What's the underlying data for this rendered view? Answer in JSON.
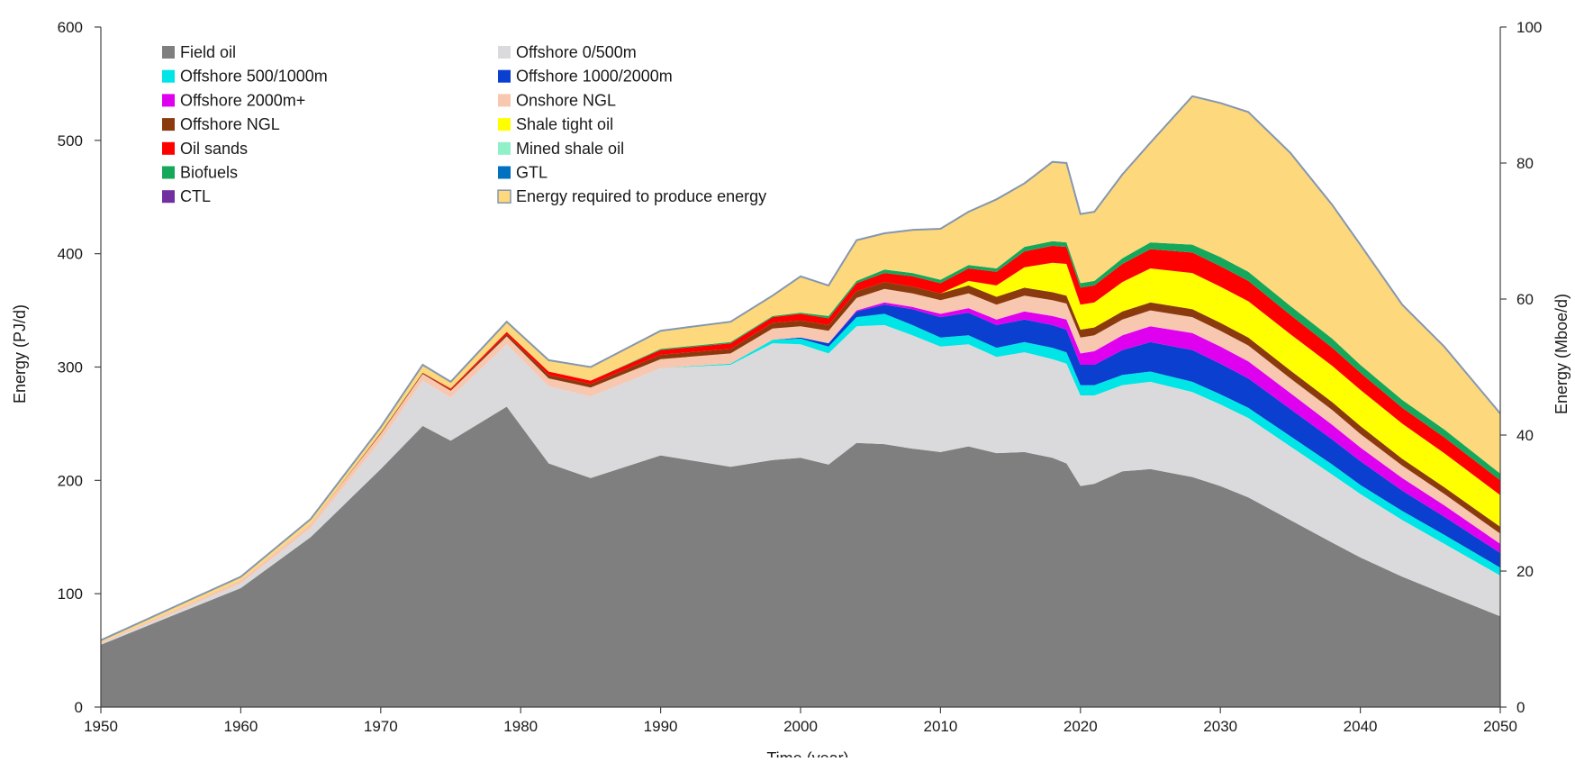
{
  "chart_data": {
    "type": "area",
    "stacked": true,
    "title": "",
    "xlabel": "Time (year)",
    "ylabel": "Energy  (PJ/d)",
    "y2label": "Energy (Mboe/d)",
    "xlim": [
      1950,
      2050
    ],
    "ylim": [
      0,
      600
    ],
    "y2lim": [
      0,
      100
    ],
    "xticks": [
      1950,
      1960,
      1970,
      1980,
      1990,
      2000,
      2010,
      2020,
      2030,
      2040,
      2050
    ],
    "yticks": [
      0,
      100,
      200,
      300,
      400,
      500,
      600
    ],
    "y2ticks": [
      0,
      20,
      40,
      60,
      80,
      100
    ],
    "grid": false,
    "legend_position": "top-left",
    "x": [
      1950,
      1955,
      1960,
      1965,
      1970,
      1973,
      1975,
      1979,
      1982,
      1985,
      1990,
      1995,
      1998,
      2000,
      2002,
      2004,
      2006,
      2008,
      2010,
      2012,
      2014,
      2016,
      2018,
      2019,
      2020,
      2021,
      2023,
      2025,
      2028,
      2030,
      2032,
      2035,
      2038,
      2040,
      2043,
      2046,
      2050
    ],
    "series": [
      {
        "name": "Field oil",
        "color": "#7f7f7f",
        "values": [
          55,
          80,
          105,
          150,
          210,
          248,
          235,
          265,
          215,
          202,
          222,
          212,
          218,
          220,
          214,
          233,
          232,
          228,
          225,
          230,
          224,
          225,
          220,
          215,
          195,
          197,
          208,
          210,
          203,
          195,
          185,
          165,
          145,
          132,
          115,
          100,
          80
        ]
      },
      {
        "name": "Offshore 0/500m",
        "color": "#dadadc",
        "values": [
          1,
          2,
          4,
          8,
          25,
          40,
          38,
          55,
          68,
          72,
          77,
          90,
          103,
          100,
          98,
          103,
          105,
          100,
          93,
          90,
          85,
          88,
          87,
          88,
          80,
          78,
          76,
          77,
          75,
          72,
          70,
          65,
          60,
          56,
          50,
          44,
          36
        ]
      },
      {
        "name": "Offshore 500/1000m",
        "color": "#00e5e5",
        "values": [
          0,
          0,
          0,
          0,
          0,
          0,
          0,
          0,
          0,
          0,
          0,
          1,
          3,
          5,
          6,
          8,
          10,
          9,
          8,
          8,
          8,
          9,
          10,
          10,
          9,
          9,
          9,
          9,
          9,
          9,
          9,
          9,
          9,
          8,
          8,
          8,
          7
        ]
      },
      {
        "name": "Offshore 1000/2000m",
        "color": "#0a3fd0",
        "values": [
          0,
          0,
          0,
          0,
          0,
          0,
          0,
          0,
          0,
          0,
          0,
          0,
          0,
          1,
          3,
          5,
          8,
          14,
          18,
          20,
          20,
          20,
          20,
          20,
          18,
          18,
          22,
          26,
          28,
          27,
          26,
          24,
          22,
          21,
          18,
          16,
          13
        ]
      },
      {
        "name": "Offshore 2000m+",
        "color": "#e000f0",
        "values": [
          0,
          0,
          0,
          0,
          0,
          0,
          0,
          0,
          0,
          0,
          0,
          0,
          0,
          0,
          0,
          1,
          2,
          2,
          3,
          4,
          5,
          7,
          8,
          9,
          10,
          12,
          13,
          14,
          15,
          15,
          15,
          14,
          13,
          12,
          11,
          10,
          8
        ]
      },
      {
        "name": "Onshore NGL",
        "color": "#f8c7b0",
        "values": [
          1,
          2,
          3,
          4,
          6,
          6,
          6,
          7,
          7,
          8,
          8,
          9,
          10,
          10,
          11,
          11,
          12,
          12,
          12,
          13,
          13,
          14,
          14,
          14,
          14,
          14,
          14,
          14,
          14,
          14,
          14,
          13,
          13,
          12,
          11,
          10,
          9
        ]
      },
      {
        "name": "Offshore NGL",
        "color": "#8b3a0e",
        "values": [
          0,
          0,
          0,
          0,
          1,
          1,
          1,
          2,
          3,
          3,
          4,
          4,
          5,
          5,
          5,
          6,
          6,
          6,
          6,
          7,
          7,
          7,
          7,
          7,
          7,
          7,
          7,
          7,
          7,
          7,
          7,
          7,
          7,
          7,
          6,
          6,
          6
        ]
      },
      {
        "name": "Shale tight oil",
        "color": "#ffff00",
        "values": [
          0,
          0,
          0,
          0,
          0,
          0,
          0,
          0,
          0,
          0,
          0,
          0,
          0,
          0,
          0,
          0,
          0,
          0,
          0,
          4,
          10,
          18,
          26,
          28,
          22,
          22,
          26,
          30,
          32,
          32,
          32,
          32,
          32,
          32,
          31,
          30,
          28
        ]
      },
      {
        "name": "Oil sands",
        "color": "#ff0000",
        "values": [
          0,
          0,
          0,
          0,
          0,
          0,
          1,
          2,
          3,
          3,
          4,
          5,
          5,
          6,
          6,
          7,
          8,
          9,
          9,
          11,
          12,
          14,
          15,
          15,
          15,
          15,
          16,
          17,
          18,
          18,
          18,
          17,
          16,
          15,
          14,
          14,
          13
        ]
      },
      {
        "name": "Mined shale oil",
        "color": "#90f0c8",
        "values": [
          0,
          0,
          0,
          0,
          0,
          0,
          0,
          0,
          0,
          0,
          0,
          0,
          0,
          0,
          0,
          0,
          0,
          0,
          0,
          0,
          0,
          0,
          0,
          0,
          0,
          0,
          0,
          0,
          0,
          0,
          0,
          0,
          0,
          0,
          0,
          0,
          0
        ]
      },
      {
        "name": "Biofuels",
        "color": "#16a85a",
        "values": [
          0,
          0,
          0,
          0,
          0,
          0,
          0,
          0,
          0,
          0,
          1,
          1,
          1,
          1,
          2,
          2,
          3,
          3,
          3,
          3,
          3,
          4,
          4,
          4,
          4,
          4,
          5,
          6,
          7,
          8,
          8,
          8,
          8,
          7,
          7,
          7,
          6
        ]
      },
      {
        "name": "GTL",
        "color": "#0070c0",
        "values": [
          0,
          0,
          0,
          0,
          0,
          0,
          0,
          0,
          0,
          0,
          0,
          0,
          0,
          0,
          0,
          0,
          0,
          0,
          0,
          0,
          0,
          0,
          0,
          0,
          0,
          0,
          0,
          0,
          0,
          0,
          0,
          0,
          0,
          0,
          0,
          0,
          0
        ]
      },
      {
        "name": "CTL",
        "color": "#7030a0",
        "values": [
          0,
          0,
          0,
          0,
          0,
          0,
          0,
          0,
          0,
          0,
          0,
          0,
          0,
          0,
          0,
          0,
          0,
          0,
          0,
          0,
          0,
          0,
          0,
          0,
          0,
          0,
          0,
          0,
          0,
          0,
          0,
          0,
          0,
          0,
          0,
          0,
          0
        ]
      },
      {
        "name": "Energy required to produce energy",
        "color": "#fdd87c",
        "values": [
          2,
          3,
          3,
          4,
          5,
          7,
          6,
          9,
          10,
          12,
          16,
          18,
          18,
          32,
          27,
          36,
          32,
          38,
          45,
          47,
          61,
          56,
          70,
          70,
          61,
          61,
          74,
          88,
          131,
          136,
          141,
          135,
          118,
          106,
          84,
          73,
          53
        ]
      }
    ]
  }
}
